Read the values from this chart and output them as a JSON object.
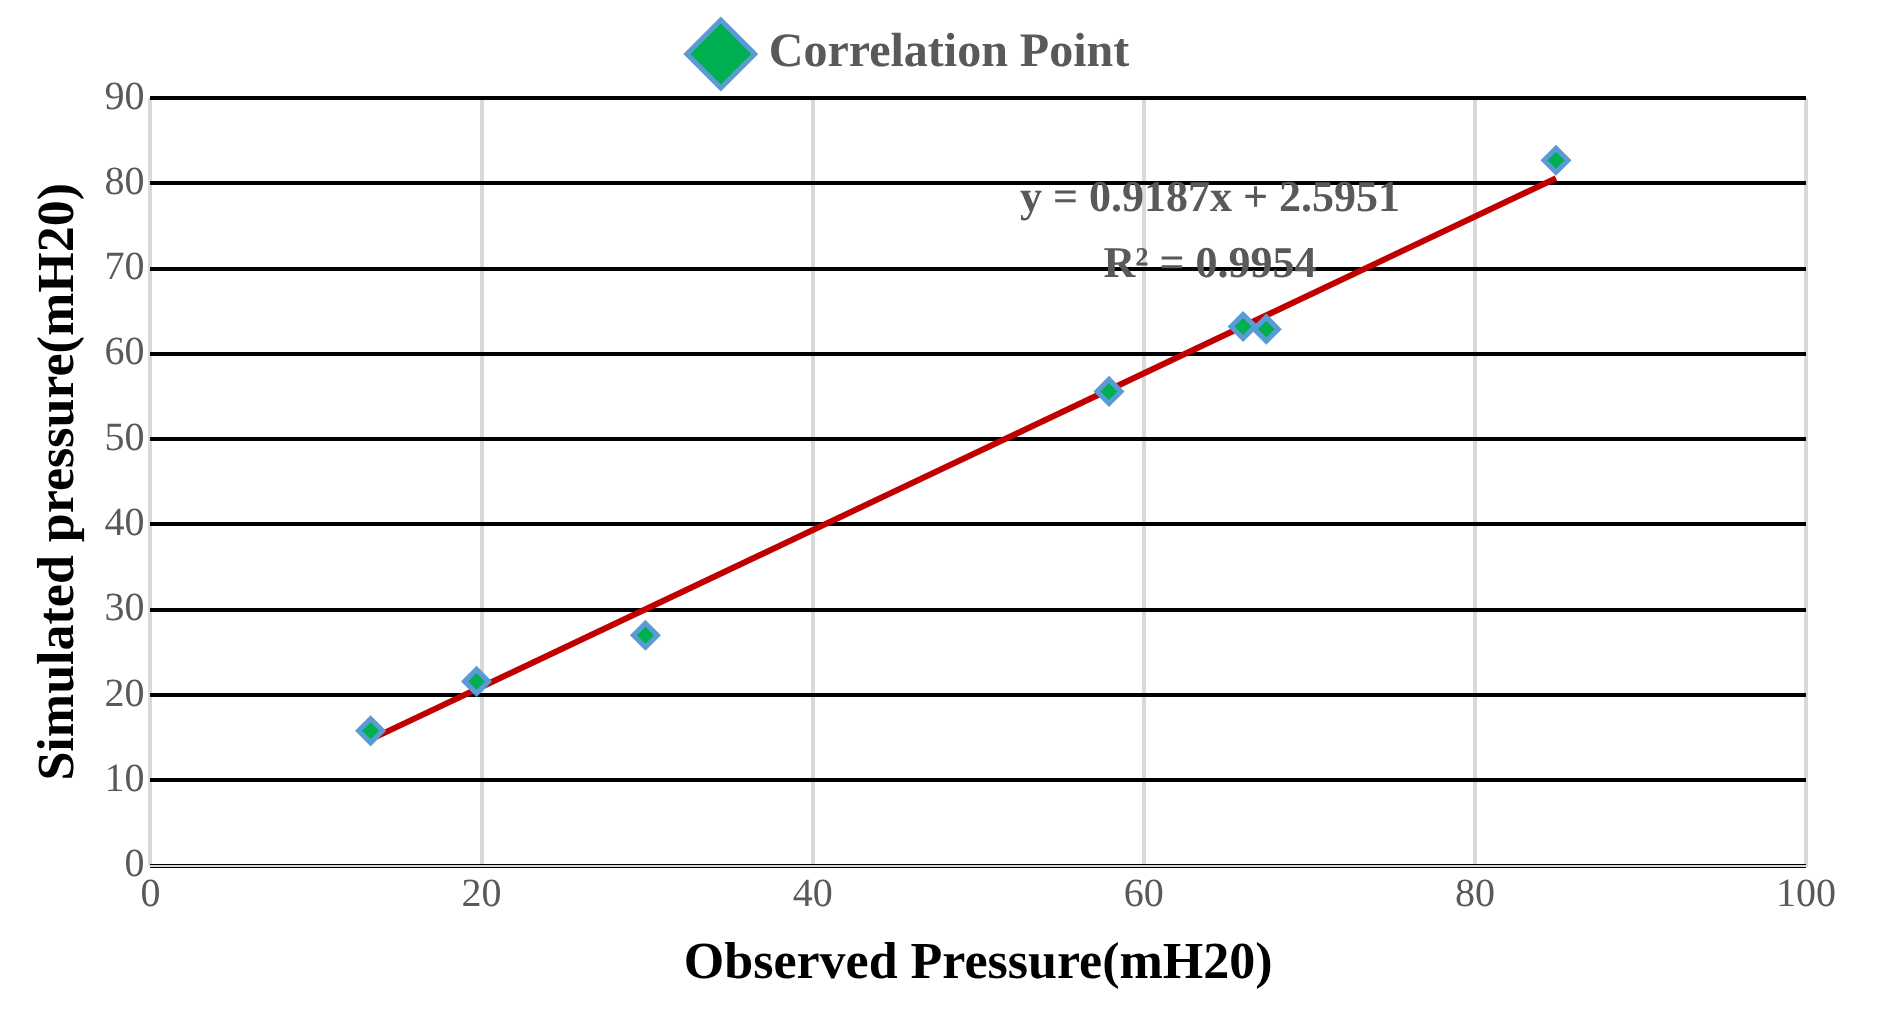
{
  "chart_data": {
    "type": "scatter",
    "xlabel": "Observed Pressure(mH20)",
    "ylabel": "Simulated pressure(mH20)",
    "series": [
      {
        "name": "Correlation Point",
        "marker": "diamond",
        "color": "#5b9bd5",
        "x": [
          13.3,
          19.7,
          29.9,
          57.9,
          66.0,
          67.4,
          84.9
        ],
        "values": [
          15.8,
          21.6,
          27.0,
          55.6,
          63.2,
          62.9,
          82.7
        ]
      },
      {
        "type": "line",
        "color": "#c00000",
        "x": [
          13.3,
          84.9
        ],
        "values": [
          14.8,
          80.6
        ]
      }
    ],
    "xlim": [
      0,
      100
    ],
    "xticks": [
      0,
      20,
      40,
      60,
      80,
      100
    ],
    "ylim": [
      0,
      90
    ],
    "yticks": [
      0,
      10,
      20,
      30,
      40,
      50,
      60,
      70,
      80,
      90
    ],
    "grid": true,
    "legend": "top",
    "annotations": [
      "y = 0.9187x + 2.5951",
      "R² = 0.9954"
    ]
  }
}
